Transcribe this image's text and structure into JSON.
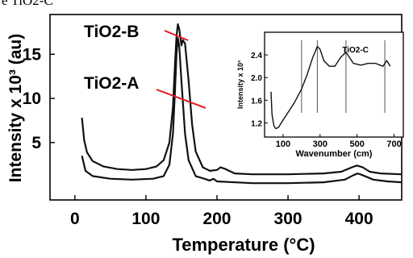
{
  "corner_caption": "e TiO2-C",
  "chart_data": [
    {
      "type": "line",
      "xlabel": "Temperature (°C)",
      "ylabel": "Intensity x 10³ (au)",
      "xlim": [
        -35,
        460
      ],
      "ylim": [
        -1.5,
        19.5
      ],
      "xticks": [
        0,
        100,
        200,
        300,
        400
      ],
      "yticks": [
        5,
        10,
        15
      ],
      "annotations": [
        "TiO2-B",
        "TiO2-A"
      ],
      "series": [
        {
          "name": "TiO2-B",
          "points": [
            [
              10,
              7.8
            ],
            [
              13,
              5.3
            ],
            [
              17,
              3.9
            ],
            [
              25,
              2.9
            ],
            [
              40,
              2.3
            ],
            [
              60,
              2.0
            ],
            [
              80,
              1.9
            ],
            [
              100,
              2.0
            ],
            [
              115,
              2.3
            ],
            [
              125,
              3.0
            ],
            [
              133,
              5.0
            ],
            [
              138,
              9.0
            ],
            [
              141,
              14.0
            ],
            [
              143,
              17.0
            ],
            [
              145,
              18.4
            ],
            [
              147,
              17.8
            ],
            [
              150,
              16.0
            ],
            [
              152,
              16.6
            ],
            [
              155,
              16.2
            ],
            [
              160,
              12.0
            ],
            [
              165,
              7.0
            ],
            [
              170,
              4.0
            ],
            [
              180,
              2.2
            ],
            [
              190,
              1.8
            ],
            [
              200,
              1.9
            ],
            [
              205,
              2.2
            ],
            [
              212,
              2.0
            ],
            [
              225,
              1.5
            ],
            [
              250,
              1.4
            ],
            [
              300,
              1.4
            ],
            [
              350,
              1.5
            ],
            [
              375,
              1.7
            ],
            [
              390,
              2.2
            ],
            [
              397,
              2.4
            ],
            [
              405,
              2.2
            ],
            [
              415,
              1.7
            ],
            [
              430,
              1.5
            ],
            [
              460,
              1.4
            ]
          ]
        },
        {
          "name": "TiO2-A",
          "points": [
            [
              10,
              3.5
            ],
            [
              15,
              1.8
            ],
            [
              25,
              1.2
            ],
            [
              50,
              0.9
            ],
            [
              80,
              0.8
            ],
            [
              110,
              0.9
            ],
            [
              125,
              1.2
            ],
            [
              133,
              2.5
            ],
            [
              138,
              6.0
            ],
            [
              141,
              11.0
            ],
            [
              143,
              15.0
            ],
            [
              145,
              16.8
            ],
            [
              147,
              15.8
            ],
            [
              150,
              12.0
            ],
            [
              155,
              6.0
            ],
            [
              160,
              3.0
            ],
            [
              170,
              1.2
            ],
            [
              190,
              0.7
            ],
            [
              195,
              0.9
            ],
            [
              200,
              0.6
            ],
            [
              250,
              0.4
            ],
            [
              300,
              0.4
            ],
            [
              350,
              0.5
            ],
            [
              380,
              0.8
            ],
            [
              392,
              1.3
            ],
            [
              398,
              1.5
            ],
            [
              405,
              1.3
            ],
            [
              420,
              0.8
            ],
            [
              440,
              0.6
            ],
            [
              460,
              0.5
            ]
          ]
        }
      ]
    },
    {
      "type": "line",
      "title": "TiO2-C",
      "xlabel": "Wavenumber (cm)",
      "ylabel": "Intensity x 10³",
      "xlim": [
        0,
        750
      ],
      "ylim": [
        0.95,
        2.8
      ],
      "xticks": [
        100,
        300,
        500,
        700
      ],
      "yticks": [
        1.2,
        1.6,
        2.0,
        2.4
      ],
      "reference_lines_x": [
        200,
        285,
        440,
        650
      ],
      "series": [
        {
          "points": [
            [
              35,
              1.75
            ],
            [
              40,
              1.35
            ],
            [
              50,
              1.15
            ],
            [
              60,
              1.1
            ],
            [
              75,
              1.12
            ],
            [
              100,
              1.25
            ],
            [
              130,
              1.4
            ],
            [
              160,
              1.55
            ],
            [
              200,
              1.8
            ],
            [
              230,
              2.05
            ],
            [
              260,
              2.35
            ],
            [
              285,
              2.55
            ],
            [
              300,
              2.5
            ],
            [
              320,
              2.3
            ],
            [
              350,
              2.2
            ],
            [
              380,
              2.2
            ],
            [
              410,
              2.35
            ],
            [
              440,
              2.45
            ],
            [
              460,
              2.35
            ],
            [
              480,
              2.25
            ],
            [
              520,
              2.22
            ],
            [
              560,
              2.25
            ],
            [
              600,
              2.25
            ],
            [
              640,
              2.2
            ],
            [
              660,
              2.3
            ],
            [
              680,
              2.2
            ]
          ]
        }
      ]
    }
  ]
}
